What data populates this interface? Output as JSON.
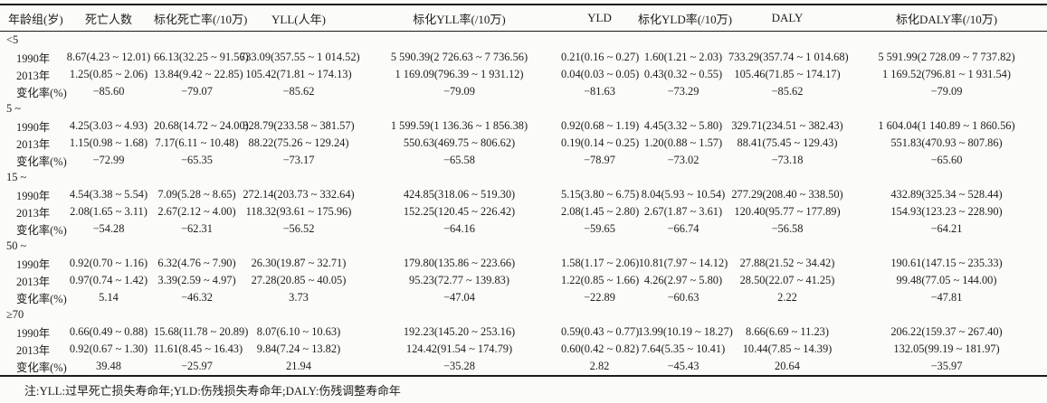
{
  "colors": {
    "text": "#1d1d1d",
    "border": "#1b1b1b",
    "background": "#fbfbf9"
  },
  "table": {
    "columns": [
      "年龄组(岁)",
      "死亡人数",
      "标化死亡率(/10万)",
      "YLL(人年)",
      "标化YLL率(/10万)",
      "YLD",
      "标化YLD率(/10万)",
      "DALY",
      "标化DALY率(/10万)"
    ],
    "groups": [
      {
        "label": "<5",
        "rows": [
          {
            "label": "1990年",
            "values": [
              "8.67(4.23 ~ 12.01)",
              "66.13(32.25 ~ 91.56)",
              "733.09(357.55 ~ 1 014.52)",
              "5 590.39(2 726.63 ~ 7 736.56)",
              "0.21(0.16 ~ 0.27)",
              "1.60(1.21 ~ 2.03)",
              "733.29(357.74 ~ 1 014.68)",
              "5 591.99(2 728.09 ~ 7 737.82)"
            ]
          },
          {
            "label": "2013年",
            "values": [
              "1.25(0.85 ~ 2.06)",
              "13.84(9.42 ~ 22.85)",
              "105.42(71.81 ~ 174.13)",
              "1 169.09(796.39 ~ 1 931.12)",
              "0.04(0.03 ~ 0.05)",
              "0.43(0.32 ~ 0.55)",
              "105.46(71.85 ~ 174.17)",
              "1 169.52(796.81 ~ 1 931.54)"
            ]
          },
          {
            "label": "变化率(%)",
            "values": [
              "−85.60",
              "−79.07",
              "−85.62",
              "−79.09",
              "−81.63",
              "−73.29",
              "−85.62",
              "−79.09"
            ]
          }
        ]
      },
      {
        "label": "5 ~",
        "rows": [
          {
            "label": "1990年",
            "values": [
              "4.25(3.03 ~ 4.93)",
              "20.68(14.72 ~ 24.00)",
              "328.79(233.58 ~ 381.57)",
              "1 599.59(1 136.36 ~ 1 856.38)",
              "0.92(0.68 ~ 1.19)",
              "4.45(3.32 ~ 5.80)",
              "329.71(234.51 ~ 382.43)",
              "1 604.04(1 140.89 ~ 1 860.56)"
            ]
          },
          {
            "label": "2013年",
            "values": [
              "1.15(0.98 ~ 1.68)",
              "7.17(6.11 ~ 10.48)",
              "88.22(75.26 ~ 129.24)",
              "550.63(469.75 ~ 806.62)",
              "0.19(0.14 ~ 0.25)",
              "1.20(0.88 ~ 1.57)",
              "88.41(75.45 ~ 129.43)",
              "551.83(470.93 ~ 807.86)"
            ]
          },
          {
            "label": "变化率(%)",
            "values": [
              "−72.99",
              "−65.35",
              "−73.17",
              "−65.58",
              "−78.97",
              "−73.02",
              "−73.18",
              "−65.60"
            ]
          }
        ]
      },
      {
        "label": "15 ~",
        "rows": [
          {
            "label": "1990年",
            "values": [
              "4.54(3.38 ~ 5.54)",
              "7.09(5.28 ~ 8.65)",
              "272.14(203.73 ~ 332.64)",
              "424.85(318.06 ~ 519.30)",
              "5.15(3.80 ~ 6.75)",
              "8.04(5.93 ~ 10.54)",
              "277.29(208.40 ~ 338.50)",
              "432.89(325.34 ~ 528.44)"
            ]
          },
          {
            "label": "2013年",
            "values": [
              "2.08(1.65 ~ 3.11)",
              "2.67(2.12 ~ 4.00)",
              "118.32(93.61 ~ 175.96)",
              "152.25(120.45 ~ 226.42)",
              "2.08(1.45 ~ 2.80)",
              "2.67(1.87 ~ 3.61)",
              "120.40(95.77 ~ 177.89)",
              "154.93(123.23 ~ 228.90)"
            ]
          },
          {
            "label": "变化率(%)",
            "values": [
              "−54.28",
              "−62.31",
              "−56.52",
              "−64.16",
              "−59.65",
              "−66.74",
              "−56.58",
              "−64.21"
            ]
          }
        ]
      },
      {
        "label": "50 ~",
        "rows": [
          {
            "label": "1990年",
            "values": [
              "0.92(0.70 ~ 1.16)",
              "6.32(4.76 ~ 7.90)",
              "26.30(19.87 ~ 32.71)",
              "179.80(135.86 ~ 223.66)",
              "1.58(1.17 ~ 2.06)",
              "10.81(7.97 ~ 14.12)",
              "27.88(21.52 ~ 34.42)",
              "190.61(147.15 ~ 235.33)"
            ]
          },
          {
            "label": "2013年",
            "values": [
              "0.97(0.74 ~ 1.42)",
              "3.39(2.59 ~ 4.97)",
              "27.28(20.85 ~ 40.05)",
              "95.23(72.77 ~ 139.83)",
              "1.22(0.85 ~ 1.66)",
              "4.26(2.97 ~ 5.80)",
              "28.50(22.07 ~ 41.25)",
              "99.48(77.05 ~ 144.00)"
            ]
          },
          {
            "label": "变化率(%)",
            "values": [
              "5.14",
              "−46.32",
              "3.73",
              "−47.04",
              "−22.89",
              "−60.63",
              "2.22",
              "−47.81"
            ]
          }
        ]
      },
      {
        "label": "≥70",
        "rows": [
          {
            "label": "1990年",
            "values": [
              "0.66(0.49 ~ 0.88)",
              "15.68(11.78 ~ 20.89)",
              "8.07(6.10 ~ 10.63)",
              "192.23(145.20 ~ 253.16)",
              "0.59(0.43 ~ 0.77)",
              "13.99(10.19 ~ 18.27)",
              "8.66(6.69 ~ 11.23)",
              "206.22(159.37 ~ 267.40)"
            ]
          },
          {
            "label": "2013年",
            "values": [
              "0.92(0.67 ~ 1.30)",
              "11.61(8.45 ~ 16.43)",
              "9.84(7.24 ~ 13.82)",
              "124.42(91.54 ~ 174.79)",
              "0.60(0.42 ~ 0.82)",
              "7.64(5.35 ~ 10.41)",
              "10.44(7.85 ~ 14.39)",
              "132.05(99.19 ~ 181.97)"
            ]
          },
          {
            "label": "变化率(%)",
            "values": [
              "39.48",
              "−25.97",
              "21.94",
              "−35.28",
              "2.82",
              "−45.43",
              "20.64",
              "−35.97"
            ]
          }
        ]
      }
    ]
  },
  "footnote": "注:YLL:过早死亡损失寿命年;YLD:伤残损失寿命年;DALY:伤残调整寿命年"
}
